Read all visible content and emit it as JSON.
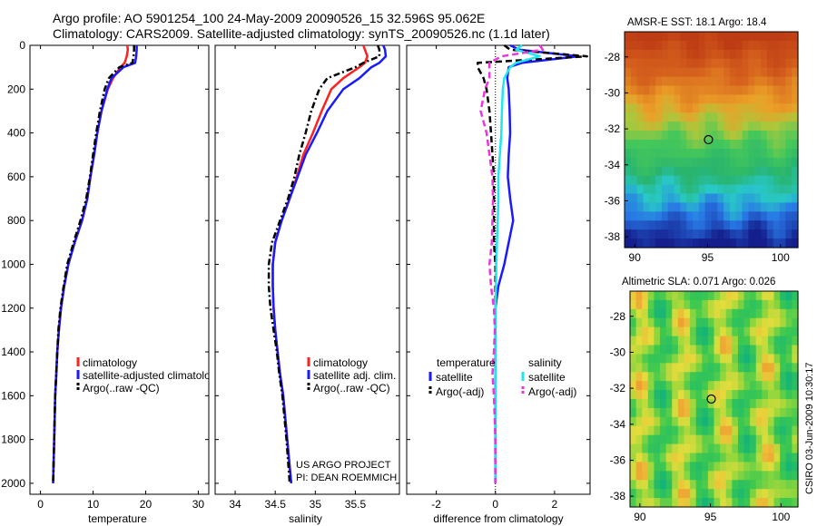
{
  "header": {
    "line1": "Argo profile: AO 5901254_100 24-May-2009 20090526_15 32.596S 95.062E",
    "line2": "Climatology: CARS2009. Satellite-adjusted climatology: synTS_20090526.nc (1.1d later)"
  },
  "footer": {
    "project": "US ARGO PROJECT",
    "pi": "PI: DEAN ROEMMICH"
  },
  "credit": "CSIRO 03-Jun-2009 10:30:17",
  "colors": {
    "climatology": "#ff2020",
    "satellite": "#1a1aff",
    "argo": "#000000",
    "satellite_salinity": "#22e6ee",
    "argo_salinity": "#ee33dd"
  },
  "chart_data": [
    {
      "type": "line",
      "name": "temperature-profile",
      "xlabel": "temperature",
      "ylabel": "",
      "xlim": [
        -2,
        32
      ],
      "ylim": [
        2050,
        0
      ],
      "xticks": [
        "0",
        "10",
        "20",
        "30"
      ],
      "xtick_values": [
        0,
        10,
        20,
        30
      ],
      "yticks": [
        "0",
        "200",
        "400",
        "600",
        "800",
        "1000",
        "1200",
        "1400",
        "1600",
        "1800",
        "2000"
      ],
      "ytick_values": [
        0,
        200,
        400,
        600,
        800,
        1000,
        1200,
        1400,
        1600,
        1800,
        2000
      ],
      "depth": [
        0,
        20,
        50,
        80,
        100,
        150,
        200,
        300,
        400,
        500,
        600,
        700,
        800,
        900,
        1000,
        1100,
        1200,
        1300,
        1400,
        1500,
        1600,
        1800,
        2000
      ],
      "series": [
        {
          "name": "climatology",
          "style": "solid",
          "values": [
            16.5,
            16.6,
            16.4,
            16.0,
            15.2,
            13.8,
            12.8,
            11.6,
            10.8,
            10.2,
            9.5,
            8.9,
            7.9,
            6.5,
            5.3,
            4.5,
            3.9,
            3.5,
            3.2,
            3.0,
            2.8,
            2.6,
            2.4
          ]
        },
        {
          "name": "satellite-adjusted climatology",
          "style": "solid",
          "values": [
            18.3,
            18.3,
            18.2,
            18.0,
            15.8,
            13.5,
            12.7,
            11.6,
            10.8,
            10.2,
            9.5,
            8.9,
            7.9,
            6.5,
            5.3,
            4.5,
            3.9,
            3.5,
            3.2,
            3.0,
            2.8,
            2.6,
            2.4
          ]
        },
        {
          "name": "Argo(..raw -QC)",
          "style": "dashdot",
          "values": [
            17.8,
            17.8,
            17.7,
            17.5,
            15.0,
            13.0,
            12.2,
            11.3,
            10.6,
            10.0,
            9.4,
            8.7,
            7.6,
            6.3,
            5.1,
            4.4,
            3.8,
            3.4,
            3.2,
            3.0,
            2.8,
            2.6,
            2.4
          ]
        }
      ],
      "legend": {
        "position": "lower-center",
        "entries": [
          "climatology",
          "satellite-adjusted climatology",
          "Argo(..raw -QC)"
        ]
      }
    },
    {
      "type": "line",
      "name": "salinity-profile",
      "xlabel": "salinity",
      "ylabel": "",
      "xlim": [
        33.75,
        36.05
      ],
      "ylim": [
        2050,
        0
      ],
      "xticks": [
        "34",
        "34.5",
        "35",
        "35.5"
      ],
      "xtick_values": [
        34,
        34.5,
        35,
        35.5
      ],
      "depth": [
        0,
        20,
        50,
        80,
        100,
        150,
        200,
        300,
        400,
        500,
        600,
        700,
        800,
        900,
        1000,
        1100,
        1200,
        1300,
        1400,
        1500,
        1600,
        1800,
        2000
      ],
      "series": [
        {
          "name": "climatology",
          "style": "solid",
          "values": [
            35.6,
            35.62,
            35.65,
            35.62,
            35.55,
            35.35,
            35.2,
            35.08,
            34.97,
            34.85,
            34.77,
            34.68,
            34.58,
            34.5,
            34.47,
            34.47,
            34.48,
            34.5,
            34.53,
            34.56,
            34.6,
            34.65,
            34.7
          ]
        },
        {
          "name": "satellite adj. clim.",
          "style": "solid",
          "values": [
            35.85,
            35.87,
            35.88,
            35.8,
            35.7,
            35.55,
            35.35,
            35.15,
            35.02,
            34.88,
            34.78,
            34.68,
            34.58,
            34.5,
            34.47,
            34.47,
            34.48,
            34.5,
            34.53,
            34.56,
            34.6,
            34.65,
            34.7
          ]
        },
        {
          "name": "Argo(..raw -QC)",
          "style": "dashdot",
          "values": [
            35.78,
            35.8,
            35.8,
            35.6,
            35.5,
            35.15,
            35.05,
            34.95,
            34.88,
            34.8,
            34.74,
            34.66,
            34.56,
            34.46,
            34.42,
            34.42,
            34.44,
            34.48,
            34.52,
            34.55,
            34.59,
            34.64,
            34.68
          ]
        }
      ],
      "legend": {
        "position": "lower-center",
        "entries": [
          "climatology",
          "satellite adj. clim.",
          "Argo(..raw -QC)"
        ]
      }
    },
    {
      "type": "line",
      "name": "difference-profile",
      "xlabel": "difference from climatology",
      "ylabel": "",
      "xlim": [
        -3,
        3.2
      ],
      "ylim": [
        2050,
        0
      ],
      "xticks": [
        "-2",
        "0",
        "2"
      ],
      "xtick_values": [
        -2,
        0,
        2
      ],
      "depth": [
        0,
        20,
        50,
        80,
        100,
        150,
        200,
        300,
        400,
        500,
        600,
        700,
        800,
        900,
        1000,
        1100,
        1200,
        1300,
        1400,
        1500,
        1600,
        1800,
        2000
      ],
      "series": [
        {
          "name": "temperature satellite",
          "style": "solid",
          "color_key": "satellite",
          "values": [
            0.5,
            0.8,
            2.8,
            0.9,
            0.45,
            0.4,
            0.45,
            0.48,
            0.5,
            0.45,
            0.42,
            0.5,
            0.6,
            0.45,
            0.3,
            0.1,
            0.0,
            0.0,
            0.0,
            0.0,
            0.0,
            0.0,
            0.0
          ]
        },
        {
          "name": "temperature Argo(-adj)",
          "style": "dashed",
          "color_key": "argo",
          "values": [
            0.3,
            0.5,
            3.1,
            -0.6,
            -0.6,
            -0.4,
            -0.3,
            -0.2,
            -0.15,
            -0.1,
            -0.05,
            -0.05,
            -0.05,
            -0.05,
            0.0,
            0.0,
            0.0,
            0.0,
            0.0,
            0.0,
            0.0,
            0.0,
            0.0
          ]
        },
        {
          "name": "salinity satellite",
          "style": "solid",
          "color_key": "satellite_salinity",
          "values": [
            0.9,
            0.7,
            1.5,
            0.7,
            0.5,
            0.3,
            0.25,
            0.22,
            0.2,
            0.15,
            0.1,
            0.1,
            0.08,
            0.05,
            0.03,
            0.02,
            0.0,
            0.0,
            0.0,
            0.0,
            0.0,
            0.0,
            0.0
          ]
        },
        {
          "name": "salinity Argo(-adj)",
          "style": "dashed",
          "color_key": "argo_salinity",
          "values": [
            1.5,
            1.6,
            0.2,
            -0.2,
            -0.2,
            -0.2,
            -0.35,
            -0.5,
            -0.3,
            -0.2,
            -0.1,
            -0.08,
            -0.1,
            -0.12,
            -0.2,
            -0.15,
            -0.05,
            -0.02,
            -0.05,
            -0.1,
            -0.05,
            0.0,
            0.0
          ]
        }
      ],
      "legend": {
        "position": "lower-center",
        "temperature_title": "temperature",
        "salinity_title": "salinity",
        "entries": [
          "satellite",
          "Argo(-adj)",
          "satellite",
          "Argo(-adj)"
        ]
      }
    },
    {
      "type": "heatmap",
      "name": "sst-map",
      "title": "AMSR-E SST: 18.1  Argo: 18.4",
      "xlim": [
        89.3,
        101.2
      ],
      "ylim": [
        -38.6,
        -26.6
      ],
      "xticks": [
        "90",
        "95",
        "100"
      ],
      "xtick_values": [
        90,
        95,
        100
      ],
      "yticks": [
        "-28",
        "-30",
        "-32",
        "-34",
        "-36",
        "-38"
      ],
      "ytick_values": [
        -28,
        -30,
        -32,
        -34,
        -36,
        -38
      ],
      "marker": {
        "lon": 95.06,
        "lat": -32.6
      }
    },
    {
      "type": "heatmap",
      "name": "sla-map",
      "title": "Altimetric SLA: 0.071  Argo: 0.026",
      "xlim": [
        89.3,
        101.2
      ],
      "ylim": [
        -38.6,
        -26.6
      ],
      "xticks": [
        "90",
        "95",
        "100"
      ],
      "xtick_values": [
        90,
        95,
        100
      ],
      "yticks": [
        "-28",
        "-30",
        "-32",
        "-34",
        "-36",
        "-38"
      ],
      "ytick_values": [
        -28,
        -30,
        -32,
        -34,
        -36,
        -38
      ],
      "marker": {
        "lon": 95.06,
        "lat": -32.6
      }
    }
  ]
}
